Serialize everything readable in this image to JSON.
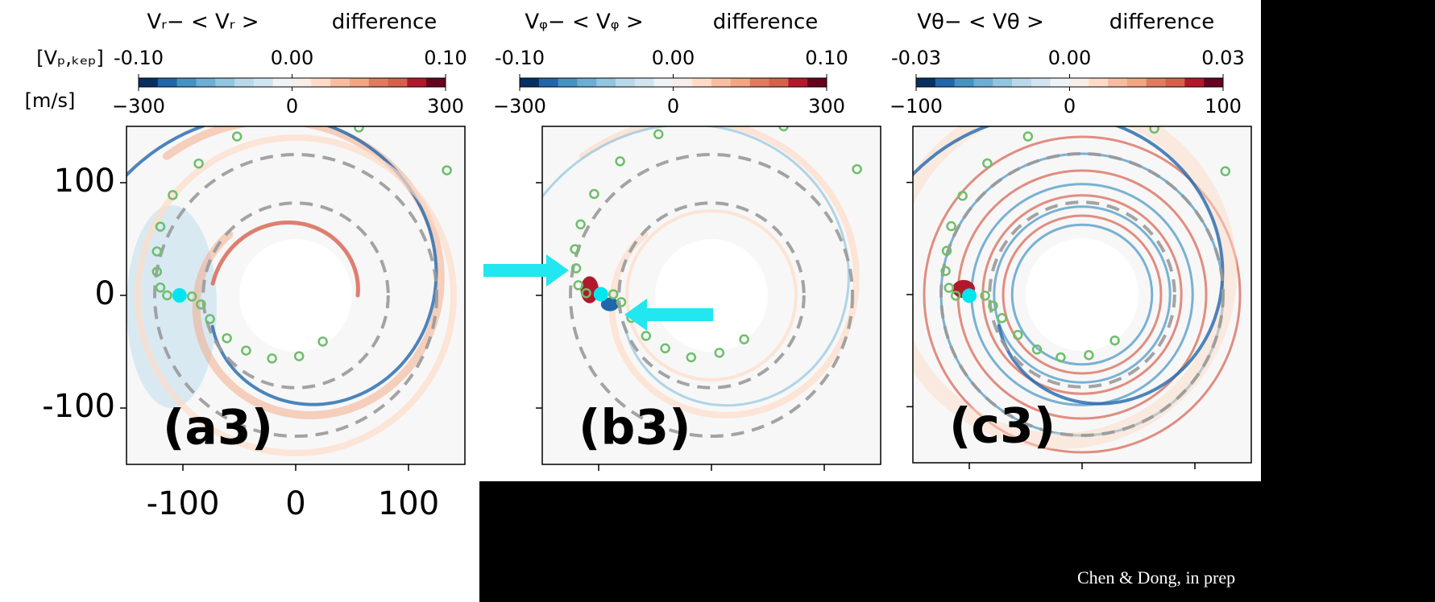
{
  "unit_top": "[Vₚ,ₖₑₚ]",
  "unit_bottom": "[m/s]",
  "footer": "Chen & Dong, in prep",
  "colormap": [
    "#053061",
    "#2166ac",
    "#4393c3",
    "#6baed6",
    "#92c5de",
    "#b9d9ea",
    "#d1e5f0",
    "#eef3f7",
    "#f8eee8",
    "#fddbc7",
    "#f8bda1",
    "#f4a582",
    "#e07b62",
    "#d6604d",
    "#b2182b",
    "#67001f"
  ],
  "chart_data": [
    {
      "type": "map",
      "title": "Vᵣ− < Vᵣ >",
      "subtitle": "difference",
      "panel_label": "(a3)",
      "colorbar_top": {
        "lim": [
          -0.1,
          0.1
        ],
        "ticks": [
          {
            "value": -0.1,
            "label": "-0.10"
          },
          {
            "value": 0,
            "label": "0.00"
          },
          {
            "value": 0.1,
            "label": "0.10"
          }
        ]
      },
      "colorbar_bottom": {
        "lim": [
          -300,
          300
        ],
        "ticks": [
          {
            "value": -300,
            "label": "−300"
          },
          0,
          300
        ]
      },
      "xlim": [
        -150,
        150
      ],
      "ylim": [
        -150,
        150
      ],
      "xticks": [
        -100,
        0,
        100
      ],
      "yticks": [
        -100,
        0,
        100
      ],
      "tick_labels": true,
      "markers": {
        "color": "#6cbf6a",
        "x": [
          56,
          -52,
          -86,
          -109,
          -120,
          -123,
          -123,
          -120,
          -114,
          -92,
          -84,
          -76,
          -61,
          -44,
          -21,
          3,
          24,
          134
        ],
        "y": [
          149,
          141,
          117,
          89,
          61,
          39,
          21,
          7,
          0,
          -1,
          -8,
          -21,
          -38,
          -49,
          -56,
          -54,
          -41,
          111
        ]
      },
      "planet": {
        "color": "#00e5ee",
        "x": -103,
        "y": 0
      }
    },
    {
      "type": "map",
      "title": "Vᵩ− < Vᵩ >",
      "subtitle": "difference",
      "panel_label": "(b3)",
      "colorbar_top": {
        "lim": [
          -0.1,
          0.1
        ],
        "ticks": [
          {
            "value": -0.1,
            "label": "-0.10"
          },
          {
            "value": 0,
            "label": "0.00"
          },
          {
            "value": 0.1,
            "label": "0.10"
          }
        ]
      },
      "colorbar_bottom": {
        "lim": [
          -300,
          300
        ],
        "ticks": [
          {
            "value": -300,
            "label": "−300"
          },
          0,
          300
        ]
      },
      "xlim": [
        -150,
        150
      ],
      "ylim": [
        -150,
        150
      ],
      "xticks": [
        -100,
        0,
        100
      ],
      "yticks": [
        -100,
        0,
        100
      ],
      "tick_labels": false,
      "markers": {
        "color": "#6cbf6a",
        "x": [
          64,
          -47,
          -81,
          -104,
          -116,
          -121,
          -120,
          -118,
          -111,
          -87,
          -80,
          -71,
          -58,
          -41,
          -18,
          7,
          29,
          129
        ],
        "y": [
          150,
          143,
          119,
          90,
          63,
          41,
          24,
          9,
          2,
          1,
          -6,
          -20,
          -36,
          -47,
          -55,
          -51,
          -39,
          112
        ]
      },
      "planet": {
        "color": "#00e5ee",
        "x": -98,
        "y": 1
      }
    },
    {
      "type": "map",
      "title": "Vθ− < Vθ >",
      "subtitle": "difference",
      "panel_label": "(c3)",
      "colorbar_top": {
        "lim": [
          -0.03,
          0.03
        ],
        "ticks": [
          {
            "value": -0.03,
            "label": "-0.03"
          },
          {
            "value": 0,
            "label": "0.00"
          },
          {
            "value": 0.03,
            "label": "0.03"
          }
        ]
      },
      "colorbar_bottom": {
        "lim": [
          -100,
          100
        ],
        "ticks": [
          {
            "value": -100,
            "label": "−100"
          },
          0,
          100
        ]
      },
      "xlim": [
        -150,
        150
      ],
      "ylim": [
        -150,
        150
      ],
      "xticks": [
        -100,
        0,
        100
      ],
      "yticks": [
        -100,
        0,
        100
      ],
      "tick_labels": false,
      "markers": {
        "color": "#6cbf6a",
        "x": [
          64,
          -48,
          -84,
          -106,
          -116,
          -120,
          -121,
          -118,
          -112,
          -86,
          -79,
          -71,
          -57,
          -40,
          -19,
          6,
          29,
          127
        ],
        "y": [
          148,
          141,
          117,
          88,
          61,
          39,
          21,
          6,
          -1,
          -1,
          -10,
          -21,
          -36,
          -49,
          -56,
          -54,
          -41,
          110
        ]
      },
      "planet": {
        "color": "#00e5ee",
        "x": -100,
        "y": -1
      }
    }
  ]
}
